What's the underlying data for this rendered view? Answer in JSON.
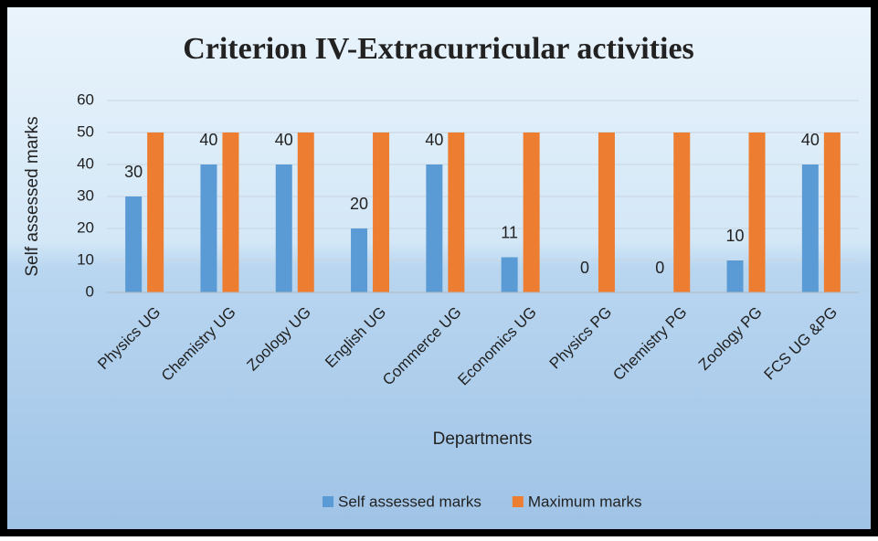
{
  "chart_data": {
    "type": "bar",
    "title": "Criterion IV-Extracurricular activities",
    "x_label": "Departments",
    "y_label": "Self assessed marks",
    "categories": [
      "Physics  UG",
      "Chemistry UG",
      "Zoology UG",
      "English UG",
      "Commerce UG",
      "Economics UG",
      "Physics  PG",
      "Chemistry PG",
      "Zoology PG",
      "FCS UG &PG"
    ],
    "series": [
      {
        "name": "Self assessed marks",
        "color": "#5b9bd5",
        "values": [
          30,
          40,
          40,
          20,
          40,
          11,
          0,
          0,
          10,
          40
        ],
        "data_labels": true
      },
      {
        "name": "Maximum marks",
        "color": "#ed7d31",
        "values": [
          50,
          50,
          50,
          50,
          50,
          50,
          50,
          50,
          50,
          50
        ]
      }
    ],
    "ylim": [
      0,
      60
    ],
    "yticks": [
      0,
      10,
      20,
      30,
      40,
      50,
      60
    ],
    "grid": true,
    "legend": "bottom"
  }
}
